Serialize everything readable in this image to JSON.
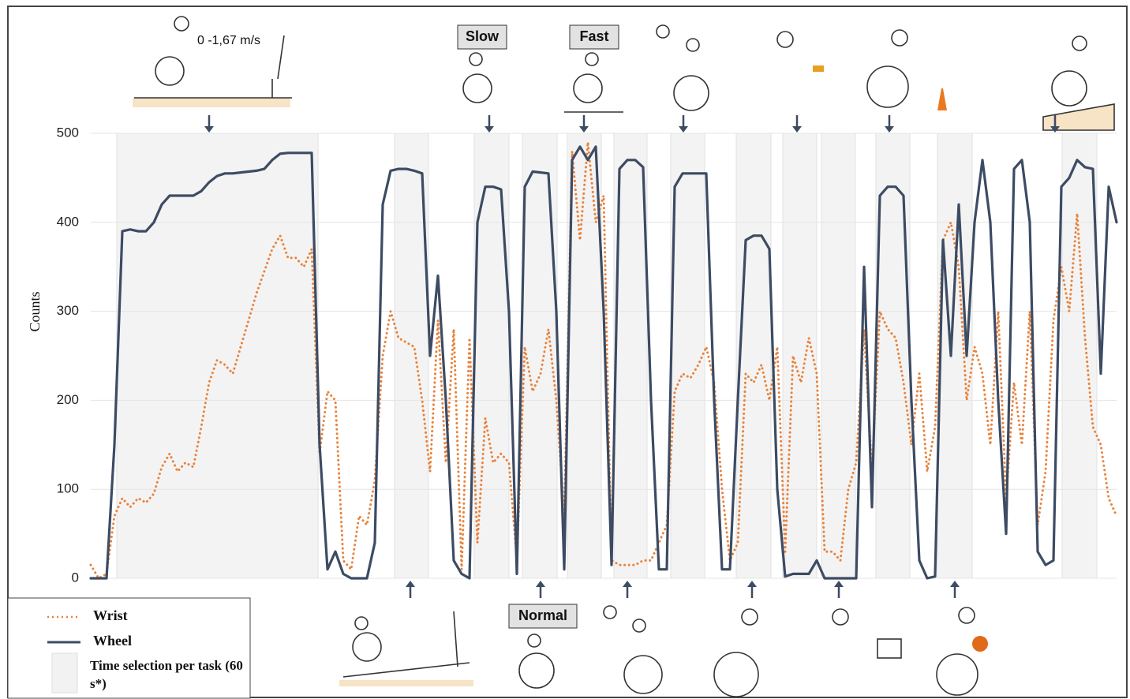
{
  "chart_data": {
    "type": "line",
    "y_label": "Counts",
    "ylim": [
      0,
      500
    ],
    "yticks": [
      0,
      100,
      200,
      300,
      400,
      500
    ],
    "grid": true,
    "annotations": {
      "speed": "0 -1,67 m/s",
      "slow": "Slow",
      "fast": "Fast",
      "normal": "Normal"
    },
    "legend_band": "Time selection per task (60 s*)",
    "series": [
      {
        "name": "Wrist",
        "color": "#e8823a",
        "dash": "dotted",
        "values": [
          15,
          0,
          5,
          70,
          90,
          80,
          90,
          85,
          95,
          125,
          140,
          120,
          130,
          125,
          170,
          220,
          245,
          240,
          230,
          260,
          290,
          320,
          345,
          370,
          385,
          360,
          360,
          350,
          370,
          140,
          210,
          200,
          20,
          10,
          70,
          60,
          110,
          250,
          300,
          270,
          265,
          260,
          200,
          120,
          290,
          130,
          280,
          10,
          270,
          40,
          180,
          130,
          140,
          130,
          20,
          260,
          210,
          230,
          280,
          200,
          70,
          480,
          380,
          490,
          400,
          430,
          20,
          15,
          15,
          15,
          20,
          20,
          40,
          60,
          210,
          230,
          225,
          240,
          260,
          220,
          100,
          20,
          40,
          230,
          220,
          240,
          200,
          260,
          30,
          250,
          220,
          270,
          230,
          30,
          30,
          20,
          100,
          130,
          280,
          120,
          300,
          280,
          270,
          220,
          150,
          230,
          120,
          170,
          380,
          400,
          350,
          200,
          260,
          230,
          150,
          300,
          90,
          220,
          150,
          300,
          60,
          120,
          290,
          350,
          300,
          410,
          270,
          170,
          150,
          90,
          70
        ]
      },
      {
        "name": "Wheel",
        "color": "#3d4b63",
        "dash": "solid",
        "values": [
          0,
          0,
          0,
          150,
          390,
          392,
          390,
          390,
          400,
          420,
          430,
          430,
          430,
          430,
          435,
          445,
          452,
          455,
          455,
          456,
          457,
          458,
          460,
          470,
          477,
          478,
          478,
          478,
          478,
          150,
          10,
          30,
          5,
          0,
          0,
          0,
          40,
          420,
          458,
          460,
          460,
          458,
          455,
          250,
          340,
          200,
          20,
          5,
          0,
          400,
          440,
          440,
          437,
          300,
          5,
          440,
          457,
          456,
          455,
          300,
          10,
          470,
          485,
          470,
          485,
          300,
          15,
          460,
          470,
          470,
          462,
          200,
          10,
          10,
          440,
          455,
          455,
          455,
          455,
          200,
          10,
          10,
          200,
          380,
          385,
          385,
          370,
          100,
          2,
          5,
          5,
          5,
          20,
          0,
          0,
          0,
          0,
          0,
          350,
          80,
          430,
          440,
          440,
          430,
          200,
          20,
          0,
          2,
          380,
          250,
          420,
          250,
          400,
          470,
          400,
          200,
          50,
          460,
          470,
          400,
          30,
          15,
          20,
          440,
          450,
          470,
          462,
          460,
          230,
          440,
          400
        ]
      }
    ]
  }
}
